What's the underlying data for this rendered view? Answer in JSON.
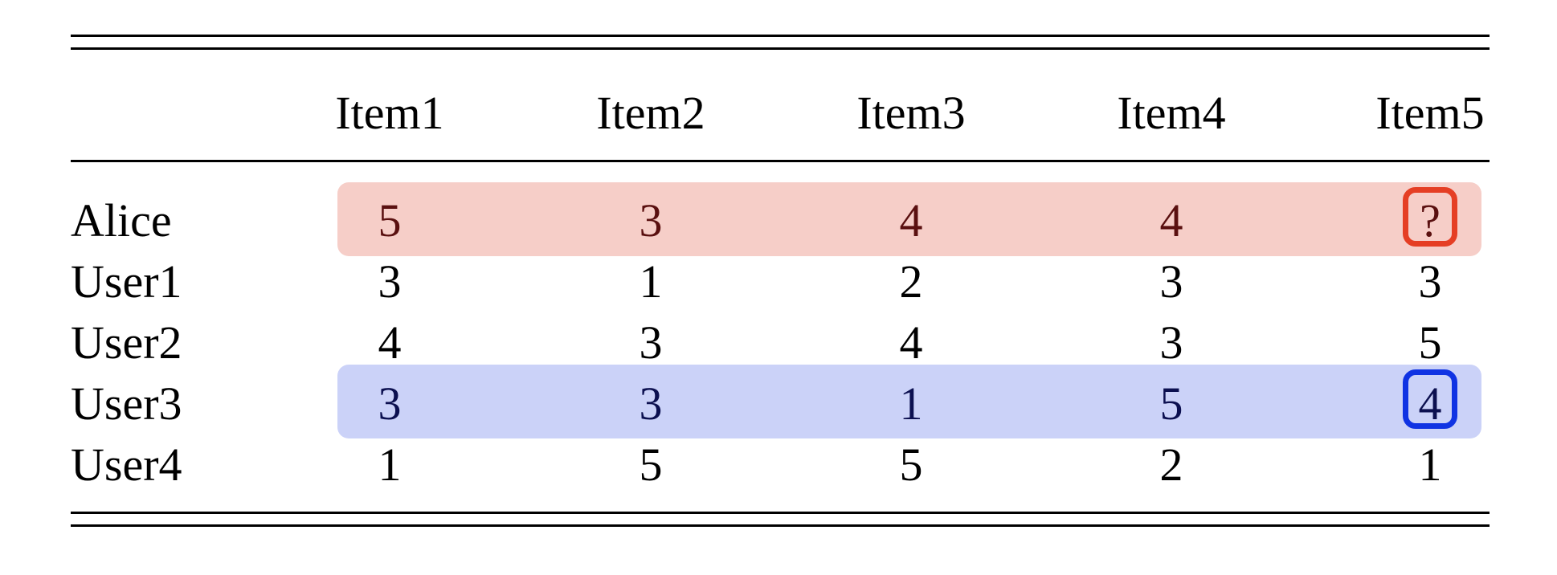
{
  "table": {
    "columns": [
      "",
      "Item1",
      "Item2",
      "Item3",
      "Item4",
      "Item5"
    ],
    "rows": [
      {
        "label": "Alice",
        "values": [
          "5",
          "3",
          "4",
          "4",
          "?"
        ],
        "highlight": "target"
      },
      {
        "label": "User1",
        "values": [
          "3",
          "1",
          "2",
          "3",
          "3"
        ],
        "highlight": "none"
      },
      {
        "label": "User2",
        "values": [
          "4",
          "3",
          "4",
          "3",
          "5"
        ],
        "highlight": "none"
      },
      {
        "label": "User3",
        "values": [
          "3",
          "3",
          "1",
          "5",
          "4"
        ],
        "highlight": "neighbor"
      },
      {
        "label": "User4",
        "values": [
          "1",
          "5",
          "5",
          "2",
          "1"
        ],
        "highlight": "none"
      }
    ]
  },
  "colors": {
    "alice_row_fill": "#f6cec8",
    "alice_text": "#5a1010",
    "alice_focus_border": "#e53e24",
    "user3_row_fill": "#cbd2f8",
    "user3_text": "#0c1050",
    "user3_focus_border": "#1033e3"
  }
}
